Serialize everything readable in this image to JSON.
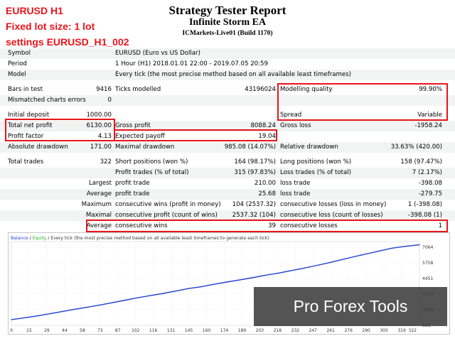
{
  "overlay": {
    "line1": "EURUSD H1",
    "line2": "Fixed lot size: 1 lot",
    "line3": "settings EURUSD_H1_002"
  },
  "header": {
    "title": "Strategy Tester Report",
    "subtitle": "Infinite Storm EA",
    "server": "ICMarkets-Live01 (Build 1170)"
  },
  "info": [
    {
      "label": "Symbol",
      "value": "EURUSD (Euro vs US Dollar)"
    },
    {
      "label": "Period",
      "value": "1 Hour (H1) 2018.01.01 22:00 - 2019.07.05 20:59"
    },
    {
      "label": "Model",
      "value": "Every tick (the most precise method based on all available least timeframes)"
    }
  ],
  "stats": {
    "bars_label": "Bars in test",
    "bars_value": "9416",
    "ticks_label": "Ticks modelled",
    "ticks_value": "43196024",
    "quality_label": "Modelling quality",
    "quality_value": "99.90%",
    "mismatch_label": "Mismatched charts errors",
    "mismatch_value": "0",
    "deposit_label": "Initial deposit",
    "deposit_value": "1000.00",
    "spread_label": "Spread",
    "spread_value": "Variable",
    "net_label": "Total net profit",
    "net_value": "6130.00",
    "gross_profit_label": "Gross profit",
    "gross_profit_value": "8088.24",
    "gross_loss_label": "Gross loss",
    "gross_loss_value": "-1958.24",
    "pf_label": "Profit factor",
    "pf_value": "4.13",
    "payoff_label": "Expected payoff",
    "payoff_value": "19.04",
    "absdd_label": "Absolute drawdown",
    "absdd_value": "171.00",
    "maxdd_label": "Maximal drawdown",
    "maxdd_value": "985.08 (14.07%)",
    "reldd_label": "Relative drawdown",
    "reldd_value": "33.63% (420.00)",
    "trades_label": "Total trades",
    "trades_value": "322",
    "short_label": "Short positions (won %)",
    "short_value": "164 (98.17%)",
    "long_label": "Long positions (won %)",
    "long_value": "158 (97.47%)",
    "pt_label": "Profit trades (% of total)",
    "pt_value": "315 (97.83%)",
    "lt_label": "Loss trades (% of total)",
    "lt_value": "7 (2.17%)",
    "largest_label": "Largest",
    "largest_pt_label": "profit trade",
    "largest_pt_value": "210.00",
    "largest_lt_label": "loss trade",
    "largest_lt_value": "-398.08",
    "average_label": "Average",
    "average_pt_label": "profit trade",
    "average_pt_value": "25.68",
    "average_lt_label": "loss trade",
    "average_lt_value": "-279.75",
    "maximum_label": "Maximum",
    "max_cw_label": "consecutive wins (profit in money)",
    "max_cw_value": "104 (2537.32)",
    "max_cl_label": "consecutive losses (loss in money)",
    "max_cl_value": "1 (-398.08)",
    "maximal_label": "Maximal",
    "mxl_cp_label": "consecutive profit (count of wins)",
    "mxl_cp_value": "2537.32 (104)",
    "mxl_cl_label": "consecutive loss (count of losses)",
    "mxl_cl_value": "-398.08 (1)",
    "avg2_label": "Average",
    "avg_cw_label": "consecutive wins",
    "avg_cw_value": "39",
    "avg_cl_label": "consecutive losses",
    "avg_cl_value": "1"
  },
  "chart": {
    "legend_balance": "Balance",
    "legend_sep": " / ",
    "legend_equity": "Equity",
    "legend_rest": " / Every tick (the most precise method based on all available least timeframes to generate each tick)",
    "balance_color": "#1f3fd0",
    "equity_color": "#2aa52a",
    "x_ticks": [
      "0",
      "15",
      "29",
      "44",
      "58",
      "73",
      "87",
      "102",
      "116",
      "131",
      "145",
      "160",
      "174",
      "189",
      "203",
      "218",
      "232",
      "247",
      "261",
      "276",
      "290",
      "305",
      "319"
    ],
    "x_last": "322",
    "y_ticks": [
      "7064",
      "5758",
      "4451",
      "3144",
      "1838",
      "531"
    ]
  },
  "chart_data": {
    "type": "line",
    "xlabel": "",
    "ylabel": "",
    "xlim": [
      0,
      322
    ],
    "ylim": [
      531,
      7400
    ],
    "series": [
      {
        "name": "Balance",
        "x": [
          0,
          10,
          20,
          30,
          40,
          50,
          60,
          70,
          80,
          90,
          100,
          110,
          120,
          130,
          140,
          150,
          160,
          170,
          180,
          190,
          200,
          210,
          220,
          230,
          240,
          250,
          260,
          270,
          280,
          290,
          300,
          310,
          322
        ],
        "values": [
          1000,
          1150,
          1300,
          1480,
          1660,
          1850,
          2020,
          2200,
          2400,
          2600,
          2800,
          2980,
          3150,
          3350,
          3550,
          3700,
          3900,
          4080,
          4250,
          4430,
          4630,
          4800,
          5000,
          5200,
          5420,
          5650,
          5900,
          6150,
          6380,
          6620,
          6850,
          7000,
          7130
        ]
      }
    ]
  },
  "watermark": "Pro Forex Tools"
}
